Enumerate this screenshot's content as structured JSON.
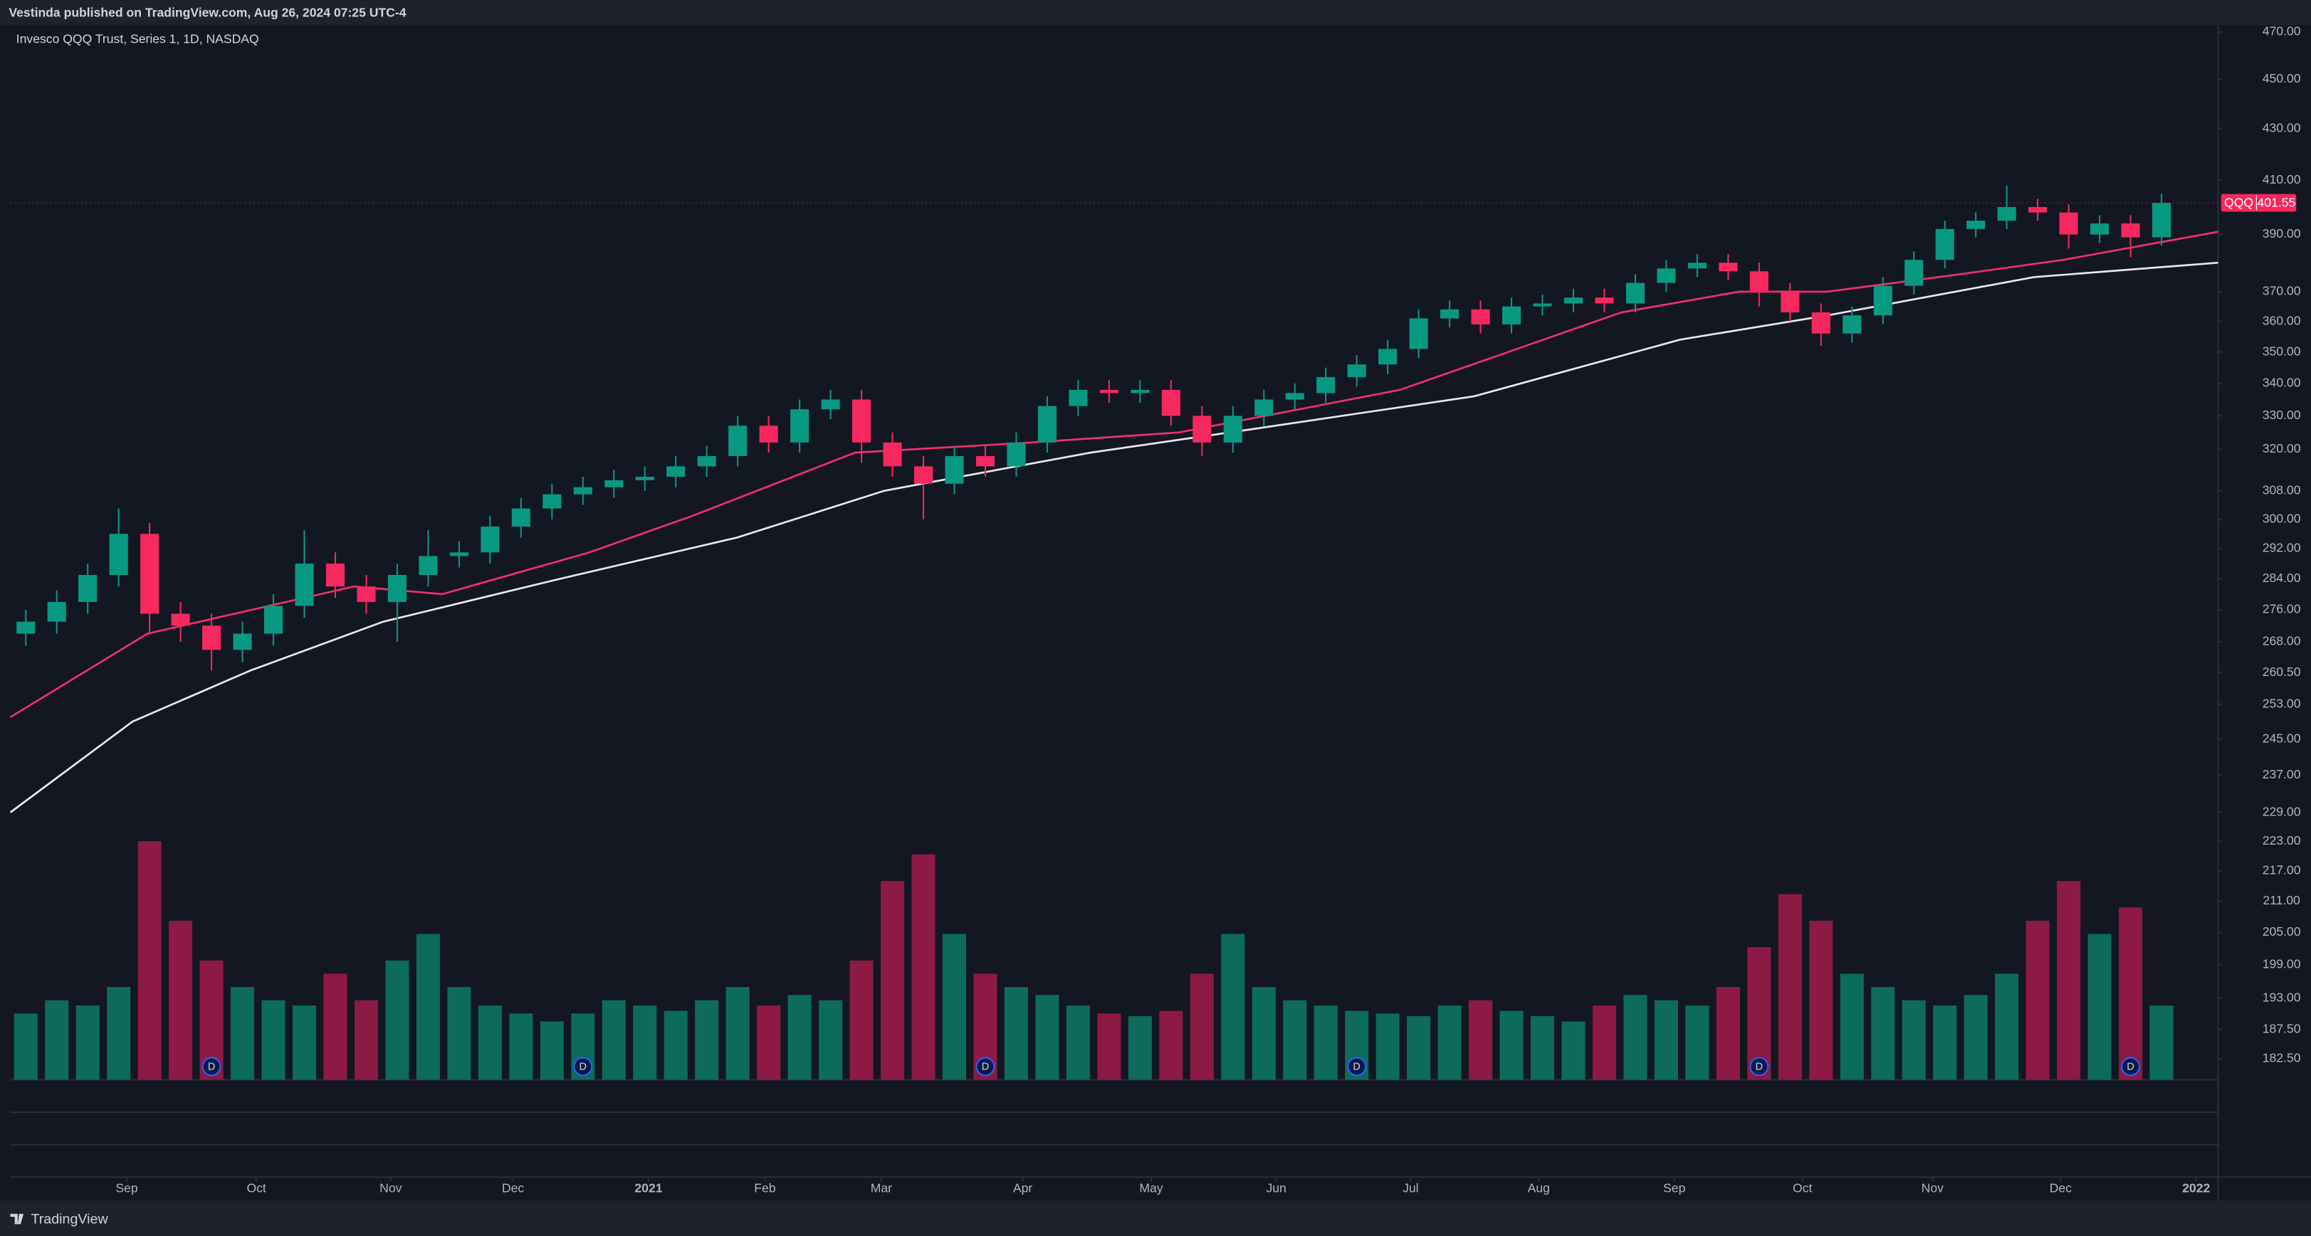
{
  "chart_data": {
    "type": "candlestick",
    "header": "Vestinda published on TradingView.com, Aug 26, 2024 07:25 UTC-4",
    "title": "Invesco QQQ Trust, Series 1, 1D, NASDAQ",
    "symbol": "QQQ",
    "brand": "TradingView",
    "log_scale": true,
    "up_color": "#089981",
    "down_color": "#f7285f",
    "ylim": [
      179,
      473
    ],
    "yticks": [
      {
        "value": 470,
        "label": "470.00"
      },
      {
        "value": 450,
        "label": "450.00"
      },
      {
        "value": 430,
        "label": "430.00"
      },
      {
        "value": 410,
        "label": "410.00"
      },
      {
        "value": 390,
        "label": "390.00"
      },
      {
        "value": 370,
        "label": "370.00"
      },
      {
        "value": 360,
        "label": "360.00"
      },
      {
        "value": 350,
        "label": "350.00"
      },
      {
        "value": 340,
        "label": "340.00"
      },
      {
        "value": 330,
        "label": "330.00"
      },
      {
        "value": 320,
        "label": "320.00"
      },
      {
        "value": 308,
        "label": "308.00"
      },
      {
        "value": 300,
        "label": "300.00"
      },
      {
        "value": 292,
        "label": "292.00"
      },
      {
        "value": 284,
        "label": "284.00"
      },
      {
        "value": 276,
        "label": "276.00"
      },
      {
        "value": 268,
        "label": "268.00"
      },
      {
        "value": 260.5,
        "label": "260.50"
      },
      {
        "value": 253,
        "label": "253.00"
      },
      {
        "value": 245,
        "label": "245.00"
      },
      {
        "value": 237,
        "label": "237.00"
      },
      {
        "value": 229,
        "label": "229.00"
      },
      {
        "value": 223,
        "label": "223.00"
      },
      {
        "value": 217,
        "label": "217.00"
      },
      {
        "value": 211,
        "label": "211.00"
      },
      {
        "value": 205,
        "label": "205.00"
      },
      {
        "value": 199,
        "label": "199.00"
      },
      {
        "value": 193,
        "label": "193.00"
      },
      {
        "value": 187.5,
        "label": "187.50"
      },
      {
        "value": 182.5,
        "label": "182.50"
      }
    ],
    "xlim": [
      -0.5,
      70.83
    ],
    "xticks": [
      {
        "value": 3.26,
        "label": "Sep"
      },
      {
        "value": 7.45,
        "label": "Oct"
      },
      {
        "value": 11.79,
        "label": "Nov"
      },
      {
        "value": 15.74,
        "label": "Dec"
      },
      {
        "value": 20.12,
        "label": "2021"
      },
      {
        "value": 23.88,
        "label": "Feb"
      },
      {
        "value": 27.64,
        "label": "Mar"
      },
      {
        "value": 32.21,
        "label": "Apr"
      },
      {
        "value": 36.36,
        "label": "May"
      },
      {
        "value": 40.4,
        "label": "Jun"
      },
      {
        "value": 44.74,
        "label": "Jul"
      },
      {
        "value": 48.88,
        "label": "Aug"
      },
      {
        "value": 53.26,
        "label": "Sep"
      },
      {
        "value": 57.4,
        "label": "Oct"
      },
      {
        "value": 61.6,
        "label": "Nov"
      },
      {
        "value": 65.74,
        "label": "Dec"
      },
      {
        "value": 70.12,
        "label": "2022"
      }
    ],
    "open": [
      270,
      273,
      278,
      285,
      296,
      275,
      272,
      266,
      270,
      277,
      288,
      282,
      278,
      285,
      290,
      291,
      298,
      303,
      307,
      309,
      311,
      312,
      315,
      318,
      327,
      322,
      332,
      335,
      322,
      315,
      310,
      318,
      315,
      322,
      333,
      338,
      337,
      338,
      330,
      322,
      330,
      335,
      337,
      342,
      346,
      351,
      361,
      364,
      359,
      365,
      366,
      368,
      366,
      373,
      378,
      380,
      377,
      370,
      363,
      356,
      362,
      372,
      381,
      392,
      395,
      400,
      398,
      390,
      394,
      389
    ],
    "high": [
      276,
      281,
      288,
      303,
      299,
      278,
      275,
      273,
      280,
      297,
      291,
      285,
      288,
      297,
      294,
      301,
      306,
      310,
      312,
      314,
      315,
      318,
      321,
      330,
      330,
      335,
      338,
      338,
      325,
      318,
      321,
      321,
      325,
      336,
      341,
      341,
      341,
      341,
      333,
      333,
      338,
      340,
      345,
      349,
      354,
      364,
      367,
      367,
      368,
      369,
      371,
      371,
      376,
      381,
      383,
      383,
      380,
      373,
      366,
      365,
      375,
      384,
      395,
      398,
      408,
      403,
      401,
      397,
      397,
      405
    ],
    "low": [
      267,
      270,
      275,
      282,
      270,
      268,
      261,
      263,
      267,
      274,
      279,
      275,
      268,
      282,
      287,
      288,
      295,
      300,
      304,
      306,
      308,
      309,
      312,
      315,
      319,
      319,
      329,
      316,
      312,
      300,
      307,
      312,
      312,
      319,
      330,
      334,
      334,
      327,
      318,
      319,
      327,
      332,
      334,
      339,
      343,
      348,
      358,
      356,
      356,
      362,
      363,
      363,
      363,
      370,
      375,
      374,
      365,
      360,
      352,
      353,
      359,
      369,
      378,
      389,
      392,
      395,
      385,
      387,
      382,
      386
    ],
    "close": [
      273,
      278,
      285,
      296,
      275,
      272,
      266,
      270,
      277,
      288,
      282,
      278,
      285,
      290,
      291,
      298,
      303,
      307,
      309,
      311,
      312,
      315,
      318,
      327,
      322,
      332,
      335,
      322,
      315,
      310,
      318,
      315,
      322,
      333,
      338,
      337,
      338,
      330,
      322,
      330,
      335,
      337,
      342,
      346,
      351,
      361,
      364,
      359,
      365,
      366,
      368,
      366,
      373,
      378,
      380,
      377,
      370,
      363,
      356,
      362,
      372,
      381,
      392,
      395,
      400,
      398,
      390,
      394,
      389,
      401.55
    ],
    "volume": {
      "vlim": [
        0,
        100
      ],
      "up_color": "#0d6b5b",
      "down_color": "#8c1a45",
      "values": [
        25,
        30,
        28,
        35,
        90,
        60,
        45,
        35,
        30,
        28,
        40,
        30,
        45,
        55,
        35,
        28,
        25,
        22,
        25,
        30,
        28,
        26,
        30,
        35,
        28,
        32,
        30,
        45,
        75,
        85,
        55,
        40,
        35,
        32,
        28,
        25,
        24,
        26,
        40,
        55,
        35,
        30,
        28,
        26,
        25,
        24,
        28,
        30,
        26,
        24,
        22,
        28,
        32,
        30,
        28,
        35,
        50,
        70,
        60,
        40,
        35,
        30,
        28,
        32,
        40,
        60,
        75,
        55,
        65,
        28
      ]
    },
    "lines": [
      {
        "color": "#f0306a",
        "x": [
          -0.5,
          3.93,
          10.6,
          13.45,
          18.21,
          21.55,
          26.79,
          32.5,
          37.26,
          44.4,
          51.55,
          55.36,
          58.21,
          62.5,
          65.83,
          70.83
        ],
        "values": [
          250,
          270,
          282,
          280,
          291,
          301,
          319,
          322,
          325,
          338,
          363,
          370,
          370,
          376,
          381,
          391
        ]
      },
      {
        "color": "#e8e8e8",
        "x": [
          -0.5,
          3.45,
          7.26,
          11.55,
          17.26,
          22.98,
          27.74,
          34.4,
          39.64,
          46.79,
          53.45,
          58.21,
          64.88,
          70.83
        ],
        "values": [
          229,
          249,
          261,
          273,
          284,
          295,
          308,
          319,
          326,
          336,
          354,
          362,
          375,
          380
        ]
      }
    ],
    "dividends": {
      "label": "D",
      "x": [
        6,
        18,
        31,
        43,
        56,
        68
      ]
    }
  }
}
